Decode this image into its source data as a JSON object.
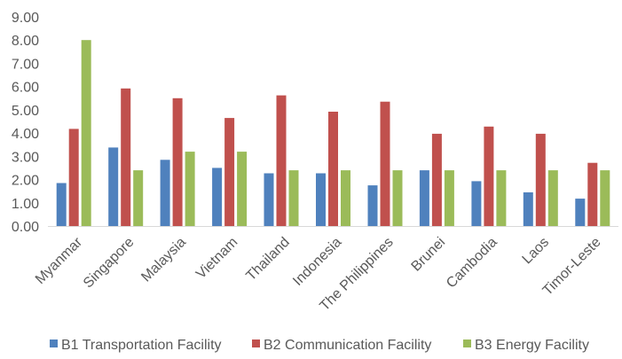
{
  "chart_data": {
    "type": "bar",
    "categories": [
      "Myanmar",
      "Singapore",
      "Malaysia",
      "Vietnam",
      "Thailand",
      "Indonesia",
      "The Philippines",
      "Brunei",
      "Cambodia",
      "Laos",
      "Timor-Leste"
    ],
    "series": [
      {
        "name": "B1 Transportation Facility",
        "color": "#4f81bd",
        "values": [
          1.85,
          3.38,
          2.85,
          2.5,
          2.27,
          2.27,
          1.75,
          2.4,
          1.93,
          1.45,
          1.18
        ]
      },
      {
        "name": "B2 Communication Facility",
        "color": "#c0504d",
        "values": [
          4.18,
          5.92,
          5.5,
          4.65,
          5.62,
          4.92,
          5.35,
          3.97,
          4.28,
          3.97,
          2.72
        ]
      },
      {
        "name": "B3 Energy Facility",
        "color": "#9bbb59",
        "values": [
          8.0,
          2.4,
          3.2,
          3.2,
          2.4,
          2.4,
          2.4,
          2.4,
          2.4,
          2.4,
          2.4
        ]
      }
    ],
    "y_ticks": [
      "0.00",
      "1.00",
      "2.00",
      "3.00",
      "4.00",
      "5.00",
      "6.00",
      "7.00",
      "8.00",
      "9.00"
    ],
    "ylim": [
      0,
      9
    ],
    "grid": false,
    "legend_position": "bottom",
    "title": "",
    "xlabel": "",
    "ylabel": ""
  }
}
